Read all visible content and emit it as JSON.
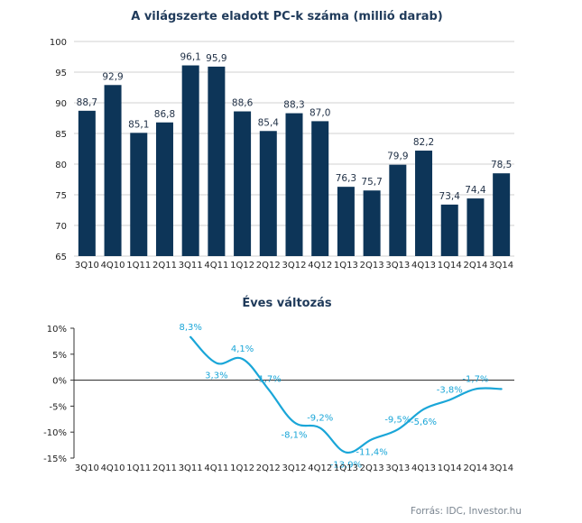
{
  "chart_data": [
    {
      "type": "bar",
      "title": "A világszerte eladott PC-k száma (millió darab)",
      "categories": [
        "3Q10",
        "4Q10",
        "1Q11",
        "2Q11",
        "3Q11",
        "4Q11",
        "1Q12",
        "2Q12",
        "3Q12",
        "4Q12",
        "1Q13",
        "2Q13",
        "3Q13",
        "4Q13",
        "1Q14",
        "2Q14",
        "3Q14"
      ],
      "values": [
        88.7,
        92.9,
        85.1,
        86.8,
        96.1,
        95.9,
        88.6,
        85.4,
        88.3,
        87.0,
        76.3,
        75.7,
        79.9,
        82.2,
        73.4,
        74.4,
        78.5
      ],
      "value_labels": [
        "88,7",
        "92,9",
        "85,1",
        "86,8",
        "96,1",
        "95,9",
        "88,6",
        "85,4",
        "88,3",
        "87,0",
        "76,3",
        "75,7",
        "79,9",
        "82,2",
        "73,4",
        "74,4",
        "78,5"
      ],
      "ylim": [
        65,
        100
      ],
      "yticks": [
        65,
        70,
        75,
        80,
        85,
        90,
        95,
        100
      ],
      "ytick_labels": [
        "65",
        "70",
        "75",
        "80",
        "85",
        "90",
        "95",
        "100"
      ],
      "grid": true,
      "bar_color": "#0d3558"
    },
    {
      "type": "line",
      "title": "Éves változás",
      "categories": [
        "3Q10",
        "4Q10",
        "1Q11",
        "2Q11",
        "3Q11",
        "4Q11",
        "1Q12",
        "2Q12",
        "3Q12",
        "4Q12",
        "1Q13",
        "2Q13",
        "3Q13",
        "4Q13",
        "1Q14",
        "2Q14",
        "3Q14"
      ],
      "values": [
        null,
        null,
        null,
        null,
        8.3,
        3.3,
        4.1,
        -1.7,
        -8.1,
        -9.2,
        -13.9,
        -11.4,
        -9.5,
        -5.6,
        -3.8,
        -1.7,
        -1.7
      ],
      "value_labels": [
        "",
        "",
        "",
        "",
        "8,3%",
        "3,3%",
        "4,1%",
        "-1,7%",
        "-8,1%",
        "-9,2%",
        "-13,9%",
        "-11,4%",
        "-9,5%",
        "-5,6%",
        "-3,8%",
        "-1,7%",
        ""
      ],
      "label_position": [
        "",
        "",
        "",
        "",
        "above",
        "below",
        "above",
        "above",
        "below",
        "above",
        "below",
        "below",
        "above",
        "below",
        "above",
        "above",
        ""
      ],
      "ylim": [
        -15,
        10
      ],
      "yticks": [
        10,
        5,
        0,
        -5,
        -10,
        -15
      ],
      "ytick_labels": [
        "10%",
        "5%",
        "0%",
        "-5%",
        "-10%",
        "-15%"
      ],
      "line_color": "#1aa6d8",
      "grid": false
    }
  ],
  "source": "Forrás: IDC, Investor.hu"
}
